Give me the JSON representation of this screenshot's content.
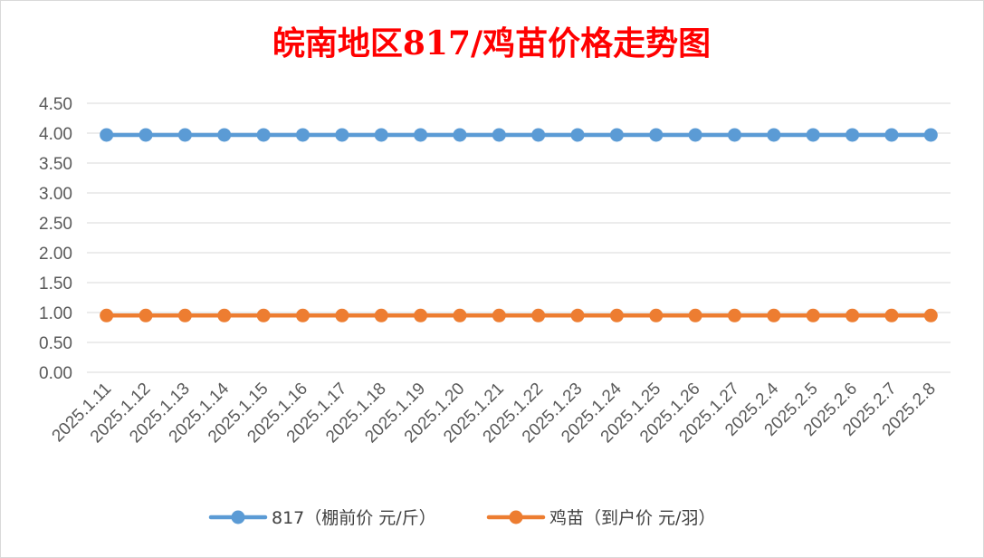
{
  "chart_data": {
    "type": "line",
    "title": "皖南地区817/鸡苗价格走势图",
    "xlabel": "",
    "ylabel": "",
    "categories": [
      "2025.1.11",
      "2025.1.12",
      "2025.1.13",
      "2025.1.14",
      "2025.1.15",
      "2025.1.16",
      "2025.1.17",
      "2025.1.18",
      "2025.1.19",
      "2025.1.20",
      "2025.1.21",
      "2025.1.22",
      "2025.1.23",
      "2025.1.24",
      "2025.1.25",
      "2025.1.26",
      "2025.1.27",
      "2025.2.4",
      "2025.2.5",
      "2025.2.6",
      "2025.2.7",
      "2025.2.8"
    ],
    "y_ticks": [
      "0.00",
      "0.50",
      "1.00",
      "1.50",
      "2.00",
      "2.50",
      "3.00",
      "3.50",
      "4.00",
      "4.50"
    ],
    "ylim": [
      0,
      4.5
    ],
    "grid": true,
    "legend_position": "bottom",
    "series": [
      {
        "name": "817（棚前价 元/斤）",
        "color": "#5b9bd5",
        "values": [
          3.97,
          3.97,
          3.97,
          3.97,
          3.97,
          3.97,
          3.97,
          3.97,
          3.97,
          3.97,
          3.97,
          3.97,
          3.97,
          3.97,
          3.97,
          3.97,
          3.97,
          3.97,
          3.97,
          3.97,
          3.97,
          3.97
        ]
      },
      {
        "name": "鸡苗（到户价 元/羽）",
        "color": "#ed7d31",
        "values": [
          0.95,
          0.95,
          0.95,
          0.95,
          0.95,
          0.95,
          0.95,
          0.95,
          0.95,
          0.95,
          0.95,
          0.95,
          0.95,
          0.95,
          0.95,
          0.95,
          0.95,
          0.95,
          0.95,
          0.95,
          0.95,
          0.95
        ]
      }
    ]
  }
}
